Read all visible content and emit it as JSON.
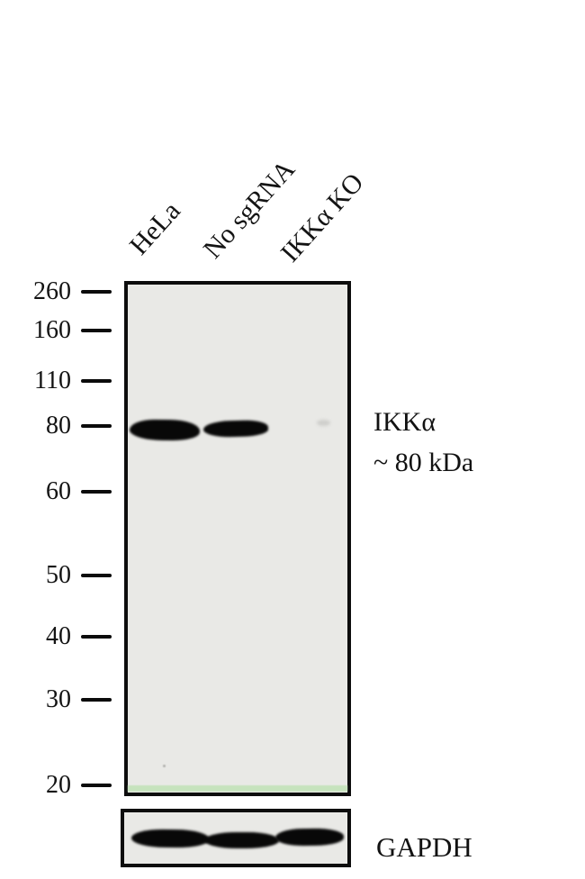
{
  "figure": {
    "technique": "Western blot",
    "lanes": [
      {
        "label": "HeLa"
      },
      {
        "label": "No sgRNA"
      },
      {
        "label": "IKKα KO"
      }
    ],
    "molecular_weight_markers_kda": [
      {
        "label": "260"
      },
      {
        "label": "160"
      },
      {
        "label": "110"
      },
      {
        "label": "80"
      },
      {
        "label": "60"
      },
      {
        "label": "50"
      },
      {
        "label": "40"
      },
      {
        "label": "30"
      },
      {
        "label": "20"
      }
    ],
    "target_annotation": {
      "protein": "IKKα",
      "approx_size": "~ 80 kDa"
    },
    "loading_control": {
      "label": "GAPDH"
    },
    "blot_data": {
      "ikka_bands": [
        {
          "lane": "HeLa",
          "present": true,
          "intensity": "strong",
          "size_kda": 80
        },
        {
          "lane": "No sgRNA",
          "present": true,
          "intensity": "strong",
          "size_kda": 80
        },
        {
          "lane": "IKKα KO",
          "present": false,
          "intensity": "none"
        }
      ],
      "gapdh_bands": [
        {
          "lane": "HeLa",
          "present": true
        },
        {
          "lane": "No sgRNA",
          "present": true
        },
        {
          "lane": "IKKα KO",
          "present": true
        }
      ]
    },
    "colors": {
      "page_bg": "#ffffff",
      "membrane_bg": "#e9e9e6",
      "panel_border": "#0d0d0d",
      "band": "#080808",
      "bottom_strip_green": "#c6e3bd",
      "text": "#111111"
    }
  }
}
